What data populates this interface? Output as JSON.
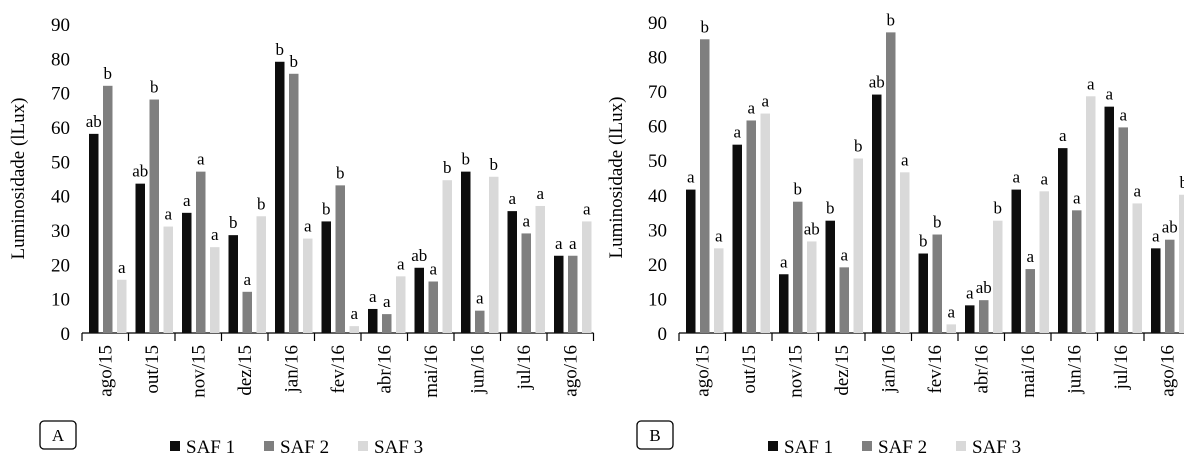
{
  "legend": [
    "SAF 1",
    "SAF 2",
    "SAF 3"
  ],
  "series_colors": [
    "#0d0d0d",
    "#7f7f7f",
    "#d9d9d9"
  ],
  "chart_data": [
    {
      "type": "bar",
      "panel": "A",
      "ylabel": "Luminosidade (lLux)",
      "ylim": [
        0,
        90
      ],
      "yticks": [
        0,
        10,
        20,
        30,
        40,
        50,
        60,
        70,
        80,
        90
      ],
      "categories": [
        "ago/15",
        "out/15",
        "nov/15",
        "dez/15",
        "jan/16",
        "fev/16",
        "abr/16",
        "mai/16",
        "jun/16",
        "jul/16",
        "ago/16"
      ],
      "series": [
        {
          "name": "SAF 1",
          "values": [
            58,
            43.5,
            35,
            28.5,
            79,
            32.5,
            7,
            19,
            47,
            35.5,
            22.5
          ]
        },
        {
          "name": "SAF 2",
          "values": [
            72,
            68,
            47,
            12,
            75.5,
            43,
            5.5,
            15,
            6.5,
            29,
            22.5
          ]
        },
        {
          "name": "SAF 3",
          "values": [
            15.5,
            31,
            25,
            34,
            27.5,
            2,
            16.5,
            44.5,
            45.5,
            37,
            32.5
          ]
        }
      ],
      "letters": [
        [
          "ab",
          "b",
          "a"
        ],
        [
          "ab",
          "b",
          "a"
        ],
        [
          "a",
          "a",
          "a"
        ],
        [
          "b",
          "a",
          "b"
        ],
        [
          "b",
          "b",
          "a"
        ],
        [
          "b",
          "b",
          "a"
        ],
        [
          "a",
          "a",
          "a"
        ],
        [
          "ab",
          "a",
          "b"
        ],
        [
          "b",
          "a",
          "b"
        ],
        [
          "a",
          "a",
          "a"
        ],
        [
          "a",
          "a",
          "a"
        ]
      ],
      "grid": false,
      "legend_position": "bottom"
    },
    {
      "type": "bar",
      "panel": "B",
      "ylabel": "Luminosidade (lLux)",
      "ylim": [
        0,
        90
      ],
      "yticks": [
        0,
        10,
        20,
        30,
        40,
        50,
        60,
        70,
        80,
        90
      ],
      "categories": [
        "ago/15",
        "out/15",
        "nov/15",
        "dez/15",
        "jan/16",
        "fev/16",
        "abr/16",
        "mai/16",
        "jun/16",
        "jul/16",
        "ago/16"
      ],
      "series": [
        {
          "name": "SAF 1",
          "values": [
            41.5,
            54.5,
            17,
            32.5,
            69,
            23,
            8,
            41.5,
            53.5,
            65.5,
            24.5
          ]
        },
        {
          "name": "SAF 2",
          "values": [
            85,
            61.5,
            38,
            19,
            87,
            28.5,
            9.5,
            18.5,
            35.5,
            59.5,
            27
          ]
        },
        {
          "name": "SAF 3",
          "values": [
            24.5,
            63.5,
            26.5,
            50.5,
            46.5,
            2.5,
            32.5,
            41,
            68.5,
            37.5,
            40
          ]
        }
      ],
      "letters": [
        [
          "a",
          "b",
          "a"
        ],
        [
          "a",
          "a",
          "a"
        ],
        [
          "a",
          "b",
          "ab"
        ],
        [
          "b",
          "a",
          "b"
        ],
        [
          "ab",
          "b",
          "a"
        ],
        [
          "b",
          "b",
          "a"
        ],
        [
          "a",
          "ab",
          "b"
        ],
        [
          "a",
          "a",
          "a"
        ],
        [
          "a",
          "a",
          "a"
        ],
        [
          "a",
          "a",
          "a"
        ],
        [
          "a",
          "ab",
          "b"
        ]
      ],
      "grid": false,
      "legend_position": "bottom"
    }
  ]
}
